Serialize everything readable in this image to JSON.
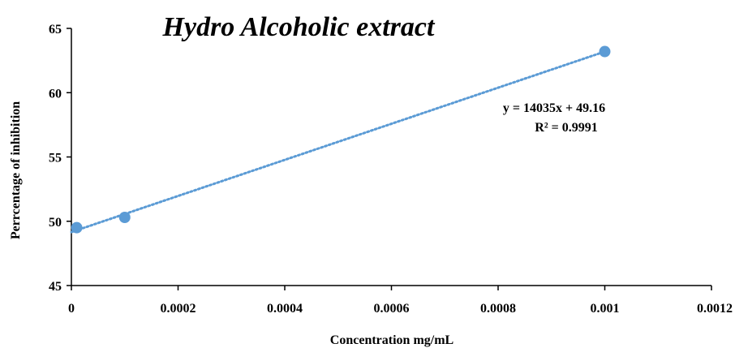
{
  "chart_data": {
    "type": "scatter",
    "title": "Hydro Alcoholic extract",
    "xlabel": "Concentration mg/mL",
    "ylabel": "Perrcentage of inhibition",
    "xlim": [
      0,
      0.0012
    ],
    "ylim": [
      45,
      65
    ],
    "x_ticks": [
      "0",
      "0.0002",
      "0.0004",
      "0.0006",
      "0.0008",
      "0.001",
      "0.0012"
    ],
    "y_ticks": [
      "45",
      "50",
      "55",
      "60",
      "65"
    ],
    "grid": false,
    "legend": "none",
    "series": [
      {
        "x": [
          1e-05,
          0.0001,
          0.001
        ],
        "y": [
          49.5,
          50.3,
          63.2
        ],
        "color": "#5b9bd5"
      }
    ],
    "trendline": {
      "type": "linear",
      "slope": 14035,
      "intercept": 49.16,
      "style": "dotted",
      "color": "#5b9bd5"
    },
    "annotations": {
      "equation": "y = 14035x + 49.16",
      "r_squared": "R² = 0.9991"
    }
  }
}
